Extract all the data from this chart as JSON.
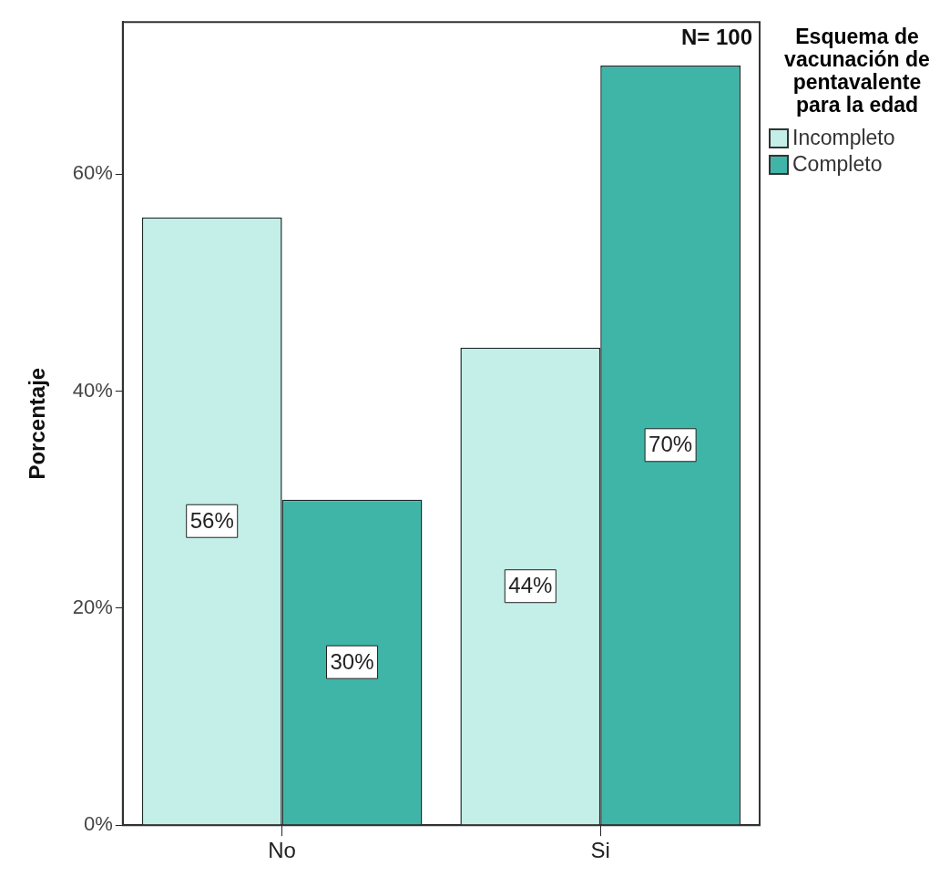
{
  "chart_data": {
    "type": "bar",
    "ylabel": "Porcentaje",
    "legend_title": "Esquema de vacunación de pentavalente para la edad",
    "categories": [
      "No",
      "Si"
    ],
    "series": [
      {
        "name": "Incompleto",
        "color": "#c3efe8",
        "values": [
          56,
          44
        ],
        "value_labels": [
          "56%",
          "44%"
        ]
      },
      {
        "name": "Completo",
        "color": "#3fb5a8",
        "values": [
          30,
          70
        ],
        "value_labels": [
          "30%",
          "70%"
        ]
      }
    ],
    "ylim": [
      0,
      74
    ],
    "yticks": [
      {
        "value": 0,
        "label": "0%"
      },
      {
        "value": 20,
        "label": "20%"
      },
      {
        "value": 40,
        "label": "40%"
      },
      {
        "value": 60,
        "label": "60%"
      }
    ],
    "grid": false,
    "legend": "top right",
    "annotations": [
      "N= 100"
    ]
  }
}
